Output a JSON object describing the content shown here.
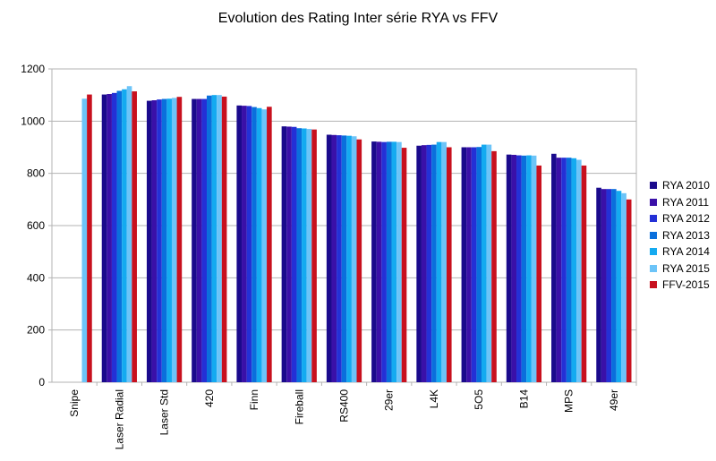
{
  "chart_data": {
    "type": "bar",
    "title": "Evolution des Rating Inter série RYA vs FFV",
    "xlabel": "",
    "ylabel": "",
    "ylim": [
      0,
      1200
    ],
    "yticks": [
      0,
      200,
      400,
      600,
      800,
      1000,
      1200
    ],
    "grid": true,
    "legend_position": "right",
    "categories": [
      "Snipe",
      "Laser Radial",
      "Laser Std",
      "420",
      "Finn",
      "Fireball",
      "RS400",
      "29er",
      "L4K",
      "5O5",
      "B14",
      "MPS",
      "49er"
    ],
    "series": [
      {
        "name": "RYA 2010",
        "color": "#1a0a8c",
        "values": [
          null,
          1102,
          1078,
          1085,
          1060,
          980,
          948,
          922,
          906,
          900,
          872,
          875,
          745
        ]
      },
      {
        "name": "RYA 2011",
        "color": "#3a10a8",
        "values": [
          null,
          1104,
          1080,
          1085,
          1059,
          979,
          947,
          921,
          908,
          900,
          871,
          860,
          740
        ]
      },
      {
        "name": "RYA 2012",
        "color": "#2430d6",
        "values": [
          null,
          1108,
          1083,
          1085,
          1058,
          978,
          946,
          920,
          909,
          900,
          869,
          860,
          740
        ]
      },
      {
        "name": "RYA 2013",
        "color": "#0a6fdc",
        "values": [
          null,
          1116,
          1085,
          1098,
          1054,
          973,
          945,
          921,
          910,
          901,
          868,
          860,
          740
        ]
      },
      {
        "name": "RYA 2014",
        "color": "#14aaf0",
        "values": [
          null,
          1122,
          1086,
          1100,
          1050,
          972,
          944,
          921,
          920,
          910,
          869,
          858,
          733
        ]
      },
      {
        "name": "RYA 2015",
        "color": "#6cc4f8",
        "values": [
          1086,
          1134,
          1089,
          1100,
          1045,
          970,
          942,
          920,
          920,
          910,
          868,
          852,
          724
        ]
      },
      {
        "name": "FFV-2015",
        "color": "#c8101e",
        "values": [
          1102,
          1114,
          1093,
          1094,
          1055,
          968,
          930,
          898,
          900,
          885,
          830,
          830,
          700
        ]
      }
    ]
  }
}
